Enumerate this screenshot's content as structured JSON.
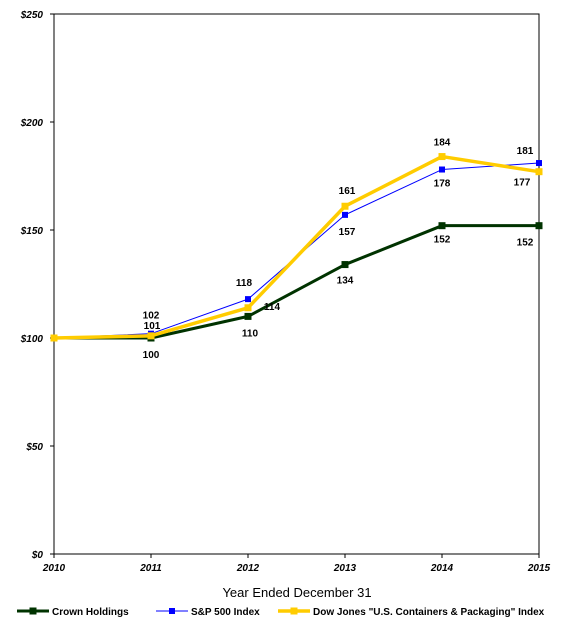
{
  "chart_data": {
    "type": "line",
    "title": "",
    "xlabel": "Year Ended December 31",
    "ylabel": "",
    "categories": [
      "2010",
      "2011",
      "2012",
      "2013",
      "2014",
      "2015"
    ],
    "y_tick_labels": [
      "$0",
      "$50",
      "$100",
      "$150",
      "$200",
      "$250"
    ],
    "y_ticks": [
      0,
      50,
      100,
      150,
      200,
      250
    ],
    "ylim": [
      0,
      250
    ],
    "grid": false,
    "legend_position": "bottom",
    "series": [
      {
        "name": "Crown Holdings",
        "values": [
          100,
          100,
          110,
          134,
          152,
          152
        ],
        "labels": [
          "",
          "100",
          "110",
          "134",
          "152",
          "152"
        ],
        "color": "#003300"
      },
      {
        "name": "S&P 500 Index",
        "values": [
          100,
          102,
          118,
          157,
          178,
          181
        ],
        "labels": [
          "",
          "102",
          "118",
          "157",
          "178",
          "181"
        ],
        "color": "#0000ff"
      },
      {
        "name": "Dow Jones \"U.S. Containers & Packaging\" Index",
        "values": [
          100,
          101,
          114,
          161,
          184,
          177
        ],
        "labels": [
          "",
          "101",
          "114",
          "161",
          "184",
          "177"
        ],
        "color": "#ffcc00"
      }
    ]
  }
}
